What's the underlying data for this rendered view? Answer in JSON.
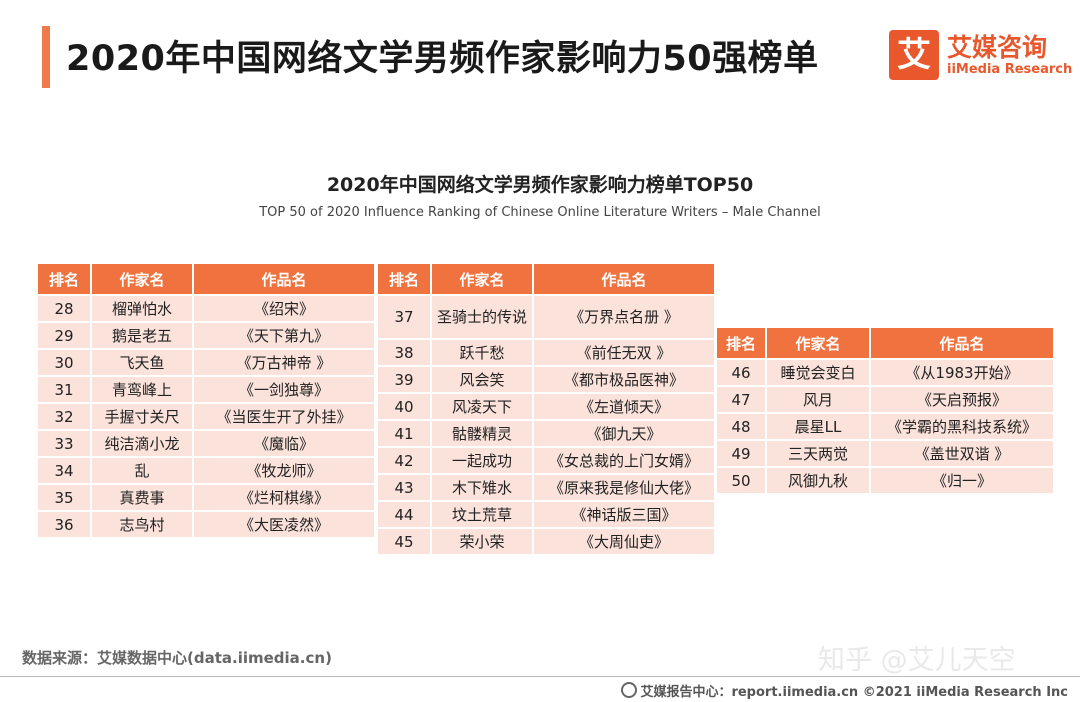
{
  "header": {
    "title": "2020年中国网络文学男频作家影响力50强榜单",
    "logo": {
      "mark": "艾",
      "cn": "艾媒咨询",
      "en": "iiMedia Research"
    }
  },
  "chart": {
    "title": "2020年中国网络文学男频作家影响力榜单TOP50",
    "subtitle": "TOP 50 of 2020 Influence Ranking of Chinese Online Literature Writers – Male Channel"
  },
  "columns": [
    "排名",
    "作家名",
    "作品名"
  ],
  "tables": [
    {
      "rows": [
        [
          "28",
          "榴弹怕水",
          "《绍宋》"
        ],
        [
          "29",
          "鹅是老五",
          "《天下第九》"
        ],
        [
          "30",
          "飞天鱼",
          "《万古神帝 》"
        ],
        [
          "31",
          "青鸾峰上",
          "《一剑独尊》"
        ],
        [
          "32",
          "手握寸关尺",
          "《当医生开了外挂》"
        ],
        [
          "33",
          "纯洁滴小龙",
          "《魔临》"
        ],
        [
          "34",
          "乱",
          "《牧龙师》"
        ],
        [
          "35",
          "真费事",
          "《烂柯棋缘》"
        ],
        [
          "36",
          "志鸟村",
          "《大医凌然》"
        ]
      ]
    },
    {
      "rows": [
        [
          "37",
          "圣骑士的传说",
          "《万界点名册 》"
        ],
        [
          "38",
          "跃千愁",
          "《前任无双 》"
        ],
        [
          "39",
          "风会笑",
          "《都市极品医神》"
        ],
        [
          "40",
          "风凌天下",
          "《左道倾天》"
        ],
        [
          "41",
          "骷髅精灵",
          "《御九天》"
        ],
        [
          "42",
          "一起成功",
          "《女总裁的上门女婿》"
        ],
        [
          "43",
          "木下雉水",
          "《原来我是修仙大佬》"
        ],
        [
          "44",
          "坟土荒草",
          "《神话版三国》"
        ],
        [
          "45",
          "荣小荣",
          "《大周仙吏》"
        ]
      ]
    },
    {
      "rows": [
        [
          "46",
          "睡觉会变白",
          "《从1983开始》"
        ],
        [
          "47",
          "风月",
          "《天启预报》"
        ],
        [
          "48",
          "晨星LL",
          "《学霸的黑科技系统》"
        ],
        [
          "49",
          "三天两觉",
          "《盖世双谐 》"
        ],
        [
          "50",
          "风御九秋",
          "《归一》"
        ]
      ]
    }
  ],
  "source": "数据来源：艾媒数据中心(data.iimedia.cn)",
  "watermark": "知乎 @艾儿天空",
  "footer": "艾媒报告中心：report.iimedia.cn  ©2021  iiMedia Research  Inc"
}
